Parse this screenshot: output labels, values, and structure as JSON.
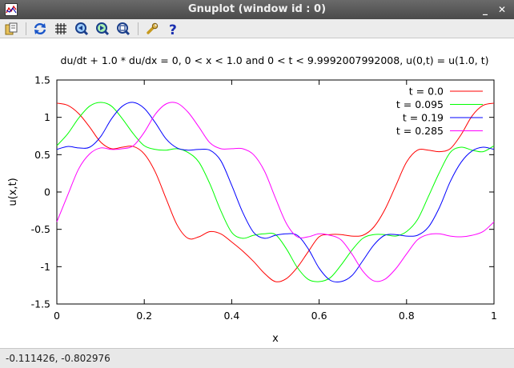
{
  "window": {
    "title": "Gnuplot (window id : 0)",
    "controls": {
      "minimize": "_",
      "close": "✕"
    }
  },
  "toolbar": {
    "buttons": [
      {
        "name": "copy-to-clipboard-button",
        "icon": "clipboard-icon"
      },
      {
        "name": "replot-button",
        "icon": "replot-icon"
      },
      {
        "name": "grid-toggle-button",
        "icon": "grid-icon"
      },
      {
        "name": "previous-zoom-button",
        "icon": "zoom-previous-icon"
      },
      {
        "name": "next-zoom-button",
        "icon": "zoom-next-icon"
      },
      {
        "name": "autoscale-button",
        "icon": "autoscale-icon"
      },
      {
        "name": "settings-button",
        "icon": "wrench-icon"
      },
      {
        "name": "help-button",
        "icon": "help-icon"
      }
    ]
  },
  "status": {
    "coordinates": "-0.111426, -0.802976"
  },
  "chart_data": {
    "type": "line",
    "title": "du/dt + 1.0 * du/dx = 0, 0 < x < 1.0 and 0 < t < 9.9992007992008, u(0,t) = u(1.0, t)",
    "xlabel": "x",
    "ylabel": "u(x,t)",
    "xlim": [
      0,
      1
    ],
    "ylim": [
      -1.5,
      1.5
    ],
    "xticks": [
      "0",
      "0.2",
      "0.4",
      "0.6",
      "0.8",
      "1"
    ],
    "xtick_values": [
      0,
      0.2,
      0.4,
      0.6,
      0.8,
      1
    ],
    "yticks": [
      "-1.5",
      "-1",
      "-0.5",
      "0",
      "0.5",
      "1",
      "1.5"
    ],
    "ytick_values": [
      -1.5,
      -1,
      -0.5,
      0,
      0.5,
      1,
      1.5
    ],
    "grid": false,
    "legend_position": "top-right",
    "x": [
      0,
      0.025,
      0.05,
      0.075,
      0.1,
      0.125,
      0.15,
      0.175,
      0.2,
      0.225,
      0.25,
      0.275,
      0.3,
      0.325,
      0.35,
      0.375,
      0.4,
      0.425,
      0.45,
      0.475,
      0.5,
      0.525,
      0.55,
      0.575,
      0.6,
      0.625,
      0.65,
      0.675,
      0.7,
      0.725,
      0.75,
      0.775,
      0.8,
      0.825,
      0.85,
      0.875,
      0.9,
      0.925,
      0.95,
      0.975,
      1
    ],
    "series": [
      {
        "name": "t = 0.0",
        "color": "#ff0000",
        "values": [
          1.19,
          1.16,
          1.05,
          0.87,
          0.67,
          0.58,
          0.6,
          0.61,
          0.51,
          0.27,
          -0.09,
          -0.44,
          -0.62,
          -0.6,
          -0.53,
          -0.56,
          -0.67,
          -0.79,
          -0.93,
          -1.09,
          -1.2,
          -1.16,
          -1.01,
          -0.8,
          -0.6,
          -0.57,
          -0.57,
          -0.59,
          -0.58,
          -0.47,
          -0.24,
          0.08,
          0.4,
          0.56,
          0.56,
          0.54,
          0.58,
          0.77,
          1.02,
          1.16,
          1.19
        ]
      },
      {
        "name": "t = 0.095",
        "color": "#00ff00",
        "values": [
          0.62,
          0.78,
          0.99,
          1.15,
          1.2,
          1.15,
          0.98,
          0.78,
          0.62,
          0.57,
          0.56,
          0.58,
          0.53,
          0.4,
          0.11,
          -0.25,
          -0.54,
          -0.62,
          -0.58,
          -0.56,
          -0.57,
          -0.76,
          -1.01,
          -1.17,
          -1.2,
          -1.15,
          -0.98,
          -0.78,
          -0.62,
          -0.57,
          -0.57,
          -0.59,
          -0.53,
          -0.37,
          -0.06,
          0.26,
          0.53,
          0.6,
          0.56,
          0.54,
          0.62
        ]
      },
      {
        "name": "t = 0.19",
        "color": "#0000ff",
        "values": [
          0.57,
          0.61,
          0.59,
          0.6,
          0.74,
          0.98,
          1.15,
          1.2,
          1.12,
          0.93,
          0.71,
          0.59,
          0.56,
          0.57,
          0.56,
          0.42,
          0.09,
          -0.27,
          -0.54,
          -0.62,
          -0.58,
          -0.56,
          -0.58,
          -0.76,
          -1.02,
          -1.18,
          -1.2,
          -1.12,
          -0.92,
          -0.71,
          -0.58,
          -0.57,
          -0.59,
          -0.58,
          -0.47,
          -0.21,
          0.14,
          0.4,
          0.55,
          0.6,
          0.57
        ]
      },
      {
        "name": "t = 0.285",
        "color": "#ff00ff",
        "values": [
          -0.4,
          -0.04,
          0.31,
          0.51,
          0.59,
          0.57,
          0.58,
          0.62,
          0.8,
          1.04,
          1.18,
          1.19,
          1.07,
          0.87,
          0.66,
          0.58,
          0.58,
          0.58,
          0.5,
          0.28,
          -0.08,
          -0.42,
          -0.6,
          -0.6,
          -0.56,
          -0.58,
          -0.64,
          -0.83,
          -1.06,
          -1.19,
          -1.17,
          -1.03,
          -0.83,
          -0.64,
          -0.57,
          -0.56,
          -0.59,
          -0.6,
          -0.58,
          -0.53,
          -0.4
        ]
      }
    ]
  }
}
